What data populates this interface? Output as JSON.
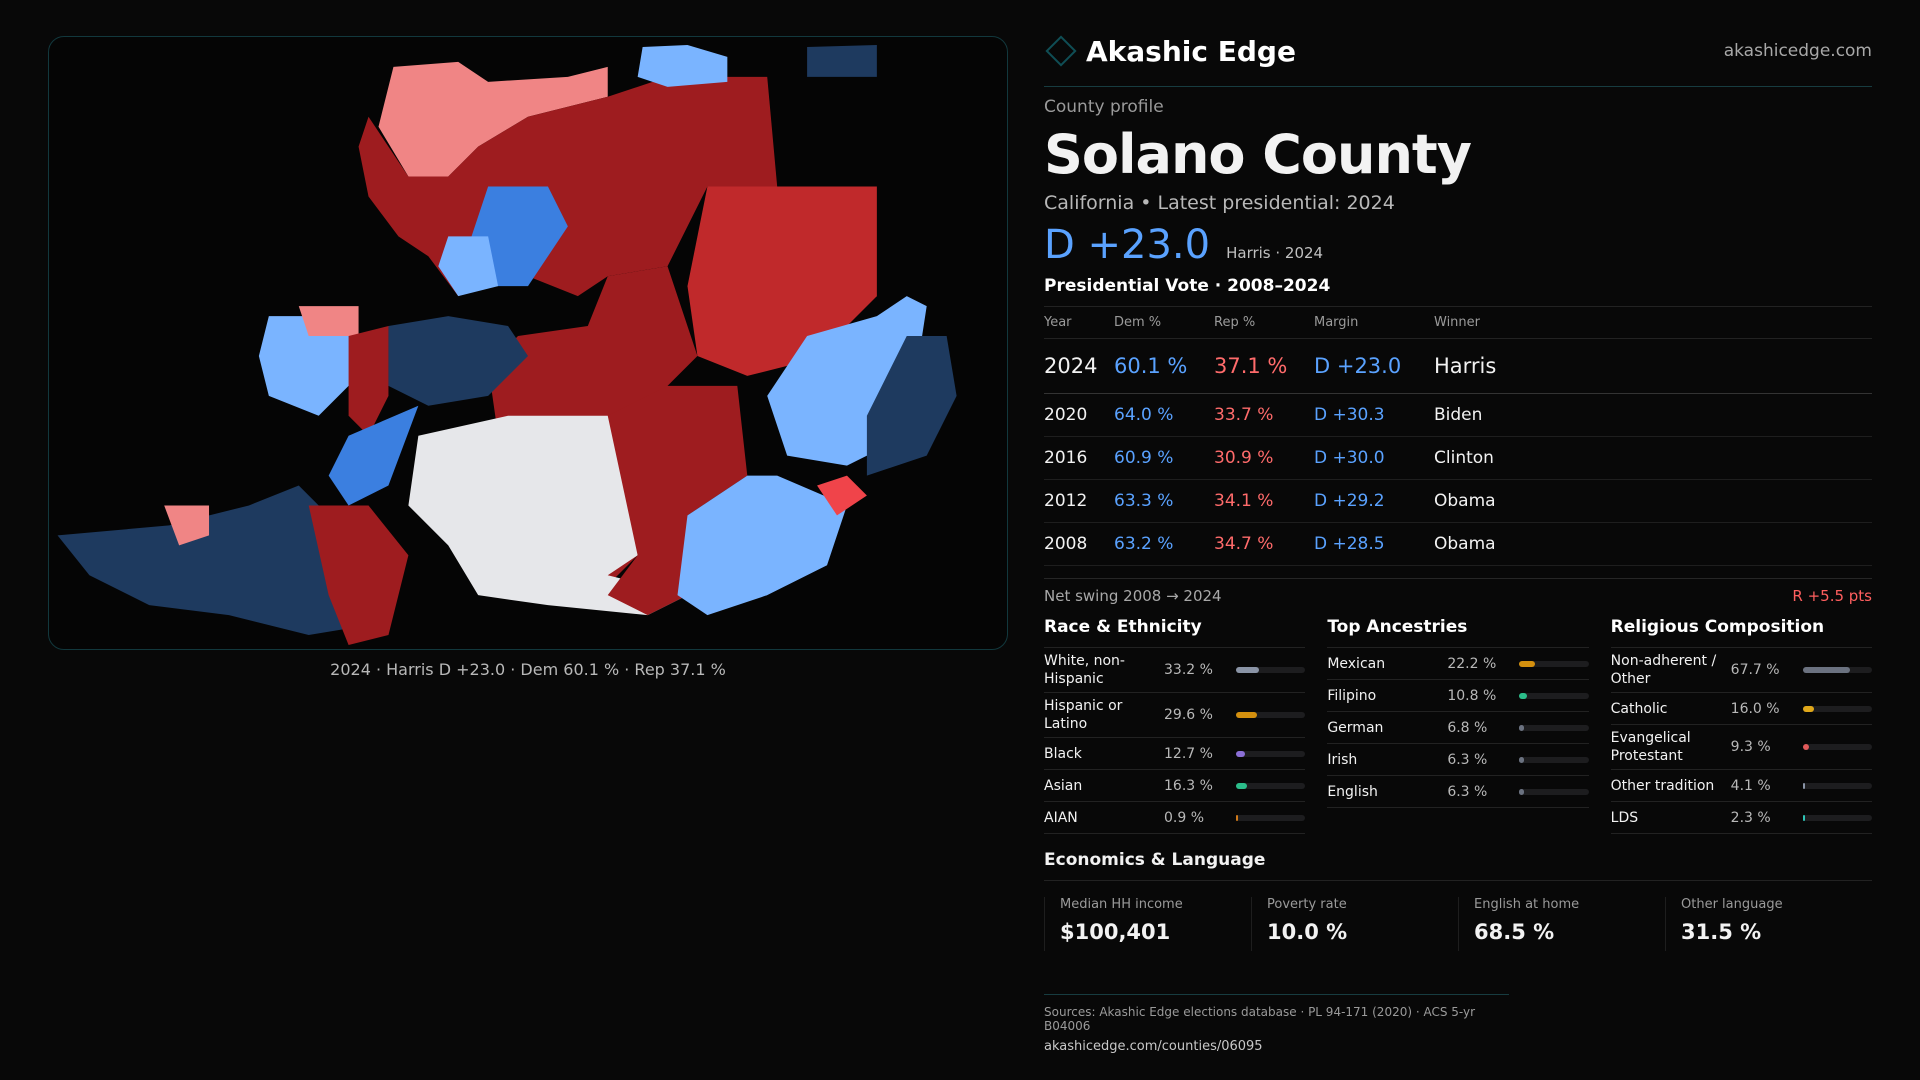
{
  "brand": {
    "name": "Akashic Edge",
    "site": "akashicedge.com"
  },
  "profile": {
    "kicker": "County profile",
    "title": "Solano County",
    "subtitle": "California • Latest presidential: 2024",
    "margin": "D +23.0",
    "margin_note": "Harris · 2024"
  },
  "map": {
    "caption": "2024 · Harris D +23.0 · Dem 60.1 % · Rep 37.1 %",
    "colors": {
      "safe_d": "#1e3a5f",
      "likely_d": "#3b7fe0",
      "lean_d": "#7ab4ff",
      "safe_r": "#9e1c1f",
      "likely_r": "#c0292b",
      "lean_r": "#f08585",
      "none": "#e6e7ea"
    }
  },
  "presidential": {
    "heading": "Presidential Vote · 2008–2024",
    "columns": [
      "Year",
      "Dem %",
      "Rep %",
      "Margin",
      "Winner"
    ],
    "rows": [
      {
        "year": "2024",
        "dem": "60.1 %",
        "rep": "37.1 %",
        "margin": "D +23.0",
        "winner": "Harris"
      },
      {
        "year": "2020",
        "dem": "64.0 %",
        "rep": "33.7 %",
        "margin": "D +30.3",
        "winner": "Biden"
      },
      {
        "year": "2016",
        "dem": "60.9 %",
        "rep": "30.9 %",
        "margin": "D +30.0",
        "winner": "Clinton"
      },
      {
        "year": "2012",
        "dem": "63.3 %",
        "rep": "34.1 %",
        "margin": "D +29.2",
        "winner": "Obama"
      },
      {
        "year": "2008",
        "dem": "63.2 %",
        "rep": "34.7 %",
        "margin": "D +28.5",
        "winner": "Obama"
      }
    ],
    "swing_label": "Net swing 2008 → 2024",
    "swing_value": "R +5.5 pts"
  },
  "race": {
    "heading": "Race & Ethnicity",
    "items": [
      {
        "label": "White, non-Hispanic",
        "value": "33.2 %",
        "pct": 33.2,
        "color": "#8a94a6"
      },
      {
        "label": "Hispanic or Latino",
        "value": "29.6 %",
        "pct": 29.6,
        "color": "#d4900e"
      },
      {
        "label": "Black",
        "value": "12.7 %",
        "pct": 12.7,
        "color": "#8b6fd6"
      },
      {
        "label": "Asian",
        "value": "16.3 %",
        "pct": 16.3,
        "color": "#2bbd8a"
      },
      {
        "label": "AIAN",
        "value": "0.9 %",
        "pct": 0.9,
        "color": "#d07a1a"
      }
    ]
  },
  "ancestry": {
    "heading": "Top Ancestries",
    "items": [
      {
        "label": "Mexican",
        "value": "22.2 %",
        "pct": 22.2,
        "color": "#d4900e"
      },
      {
        "label": "Filipino",
        "value": "10.8 %",
        "pct": 10.8,
        "color": "#2bbd8a"
      },
      {
        "label": "German",
        "value": "6.8 %",
        "pct": 6.8,
        "color": "#6b7280"
      },
      {
        "label": "Irish",
        "value": "6.3 %",
        "pct": 6.3,
        "color": "#6b7280"
      },
      {
        "label": "English",
        "value": "6.3 %",
        "pct": 6.3,
        "color": "#6b7280"
      }
    ]
  },
  "religion": {
    "heading": "Religious Composition",
    "items": [
      {
        "label": "Non-adherent / Other",
        "value": "67.7 %",
        "pct": 67.7,
        "color": "#6b7280"
      },
      {
        "label": "Catholic",
        "value": "16.0 %",
        "pct": 16.0,
        "color": "#e0a81a"
      },
      {
        "label": "Evangelical Protestant",
        "value": "9.3 %",
        "pct": 9.3,
        "color": "#e05a5a"
      },
      {
        "label": "Other tradition",
        "value": "4.1 %",
        "pct": 4.1,
        "color": "#8a94a6"
      },
      {
        "label": "LDS",
        "value": "2.3 %",
        "pct": 2.3,
        "color": "#2ec4b6"
      }
    ]
  },
  "economics": {
    "heading": "Economics & Language",
    "stats": [
      {
        "label": "Median HH income",
        "value": "$100,401"
      },
      {
        "label": "Poverty rate",
        "value": "10.0 %"
      },
      {
        "label": "English at home",
        "value": "68.5 %"
      },
      {
        "label": "Other language",
        "value": "31.5 %"
      }
    ]
  },
  "footer": {
    "sources": "Sources: Akashic Edge elections database · PL 94-171 (2020) · ACS 5-yr B04006",
    "url": "akashicedge.com/counties/06095"
  }
}
